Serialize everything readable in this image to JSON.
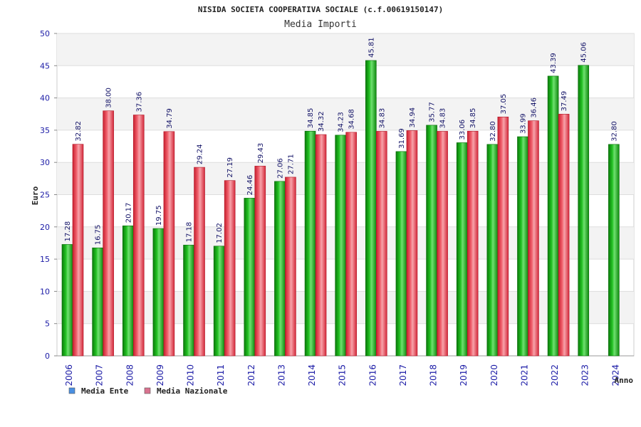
{
  "chart_data": {
    "type": "bar",
    "title": "NISIDA SOCIETA COOPERATIVA SOCIALE (c.f.00619150147)",
    "subtitle": "Media Importi",
    "xlabel": "Anno",
    "ylabel": "Euro",
    "ylim": [
      0,
      50
    ],
    "yticks": [
      0,
      5,
      10,
      15,
      20,
      25,
      30,
      35,
      40,
      45,
      50
    ],
    "grid": true,
    "legend_position": "bottom-left",
    "categories": [
      "2006",
      "2007",
      "2008",
      "2009",
      "2010",
      "2011",
      "2012",
      "2013",
      "2014",
      "2015",
      "2016",
      "2017",
      "2018",
      "2019",
      "2020",
      "2021",
      "2022",
      "2023",
      "2024"
    ],
    "series": [
      {
        "name": "Media Ente",
        "legend_color": "#4a90e2",
        "bar_color": "#1fb01f",
        "values": [
          17.28,
          16.75,
          20.17,
          19.75,
          17.18,
          17.02,
          24.46,
          27.06,
          34.85,
          34.23,
          45.81,
          31.69,
          35.77,
          33.06,
          32.8,
          33.99,
          43.39,
          45.06,
          32.8
        ],
        "labels": [
          "17.28",
          "16.75",
          "20.17",
          "19.75",
          "17.18",
          "17.02",
          "24.46",
          "27.06",
          "34.85",
          "34.23",
          "45.81",
          "31.69",
          "35.77",
          "33.06",
          "32.80",
          "33.99",
          "43.39",
          "45.06",
          "32.80"
        ]
      },
      {
        "name": "Media Nazionale",
        "legend_color": "#d9738f",
        "bar_color": "#e23a4a",
        "values": [
          32.82,
          38.0,
          37.36,
          34.79,
          29.24,
          27.19,
          29.43,
          27.71,
          34.32,
          34.68,
          34.83,
          34.94,
          34.83,
          34.85,
          37.05,
          36.46,
          37.49,
          null,
          null
        ],
        "labels": [
          "32.82",
          "38.00",
          "37.36",
          "34.79",
          "29.24",
          "27.19",
          "29.43",
          "27.71",
          "34.32",
          "34.68",
          "34.83",
          "34.94",
          "34.83",
          "34.85",
          "37.05",
          "36.46",
          "37.49",
          null,
          null
        ]
      }
    ]
  }
}
